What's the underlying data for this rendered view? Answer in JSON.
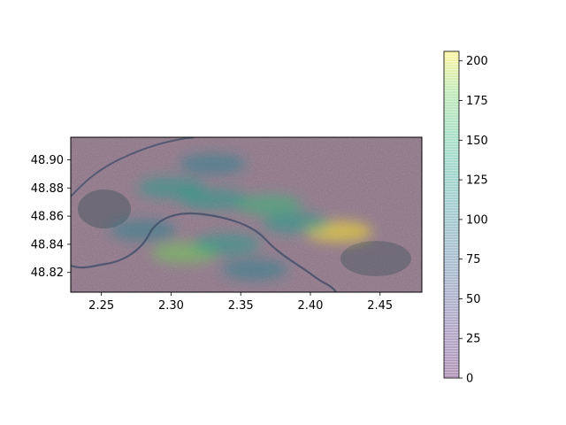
{
  "chart_data": {
    "type": "heatmap",
    "subtype": "density overlay on satellite map",
    "title": "",
    "xlabel": "",
    "ylabel": "",
    "xlim": [
      2.228,
      2.48
    ],
    "ylim": [
      48.806,
      48.916
    ],
    "x_ticks": [
      "2.25",
      "2.30",
      "2.35",
      "2.40",
      "2.45"
    ],
    "x_tick_values": [
      2.25,
      2.3,
      2.35,
      2.4,
      2.45
    ],
    "y_ticks": [
      "48.82",
      "48.84",
      "48.86",
      "48.88",
      "48.90"
    ],
    "y_tick_values": [
      48.82,
      48.84,
      48.86,
      48.88,
      48.9
    ],
    "grid": false,
    "colorbar": {
      "colormap": "viridis",
      "alpha": 0.35,
      "range": [
        0,
        206
      ],
      "ticks": [
        "0",
        "25",
        "50",
        "75",
        "100",
        "125",
        "150",
        "175",
        "200"
      ],
      "tick_values": [
        0,
        25,
        50,
        75,
        100,
        125,
        150,
        175,
        200
      ]
    },
    "hotspots": [
      {
        "x": 2.42,
        "y": 48.849,
        "value": 205
      },
      {
        "x": 2.31,
        "y": 48.834,
        "value": 180
      },
      {
        "x": 2.37,
        "y": 48.868,
        "value": 150
      },
      {
        "x": 2.33,
        "y": 48.872,
        "value": 135
      },
      {
        "x": 2.39,
        "y": 48.855,
        "value": 140
      },
      {
        "x": 2.3,
        "y": 48.88,
        "value": 120
      },
      {
        "x": 2.28,
        "y": 48.85,
        "value": 110
      },
      {
        "x": 2.34,
        "y": 48.84,
        "value": 125
      },
      {
        "x": 2.33,
        "y": 48.897,
        "value": 110
      },
      {
        "x": 2.36,
        "y": 48.822,
        "value": 100
      }
    ]
  }
}
